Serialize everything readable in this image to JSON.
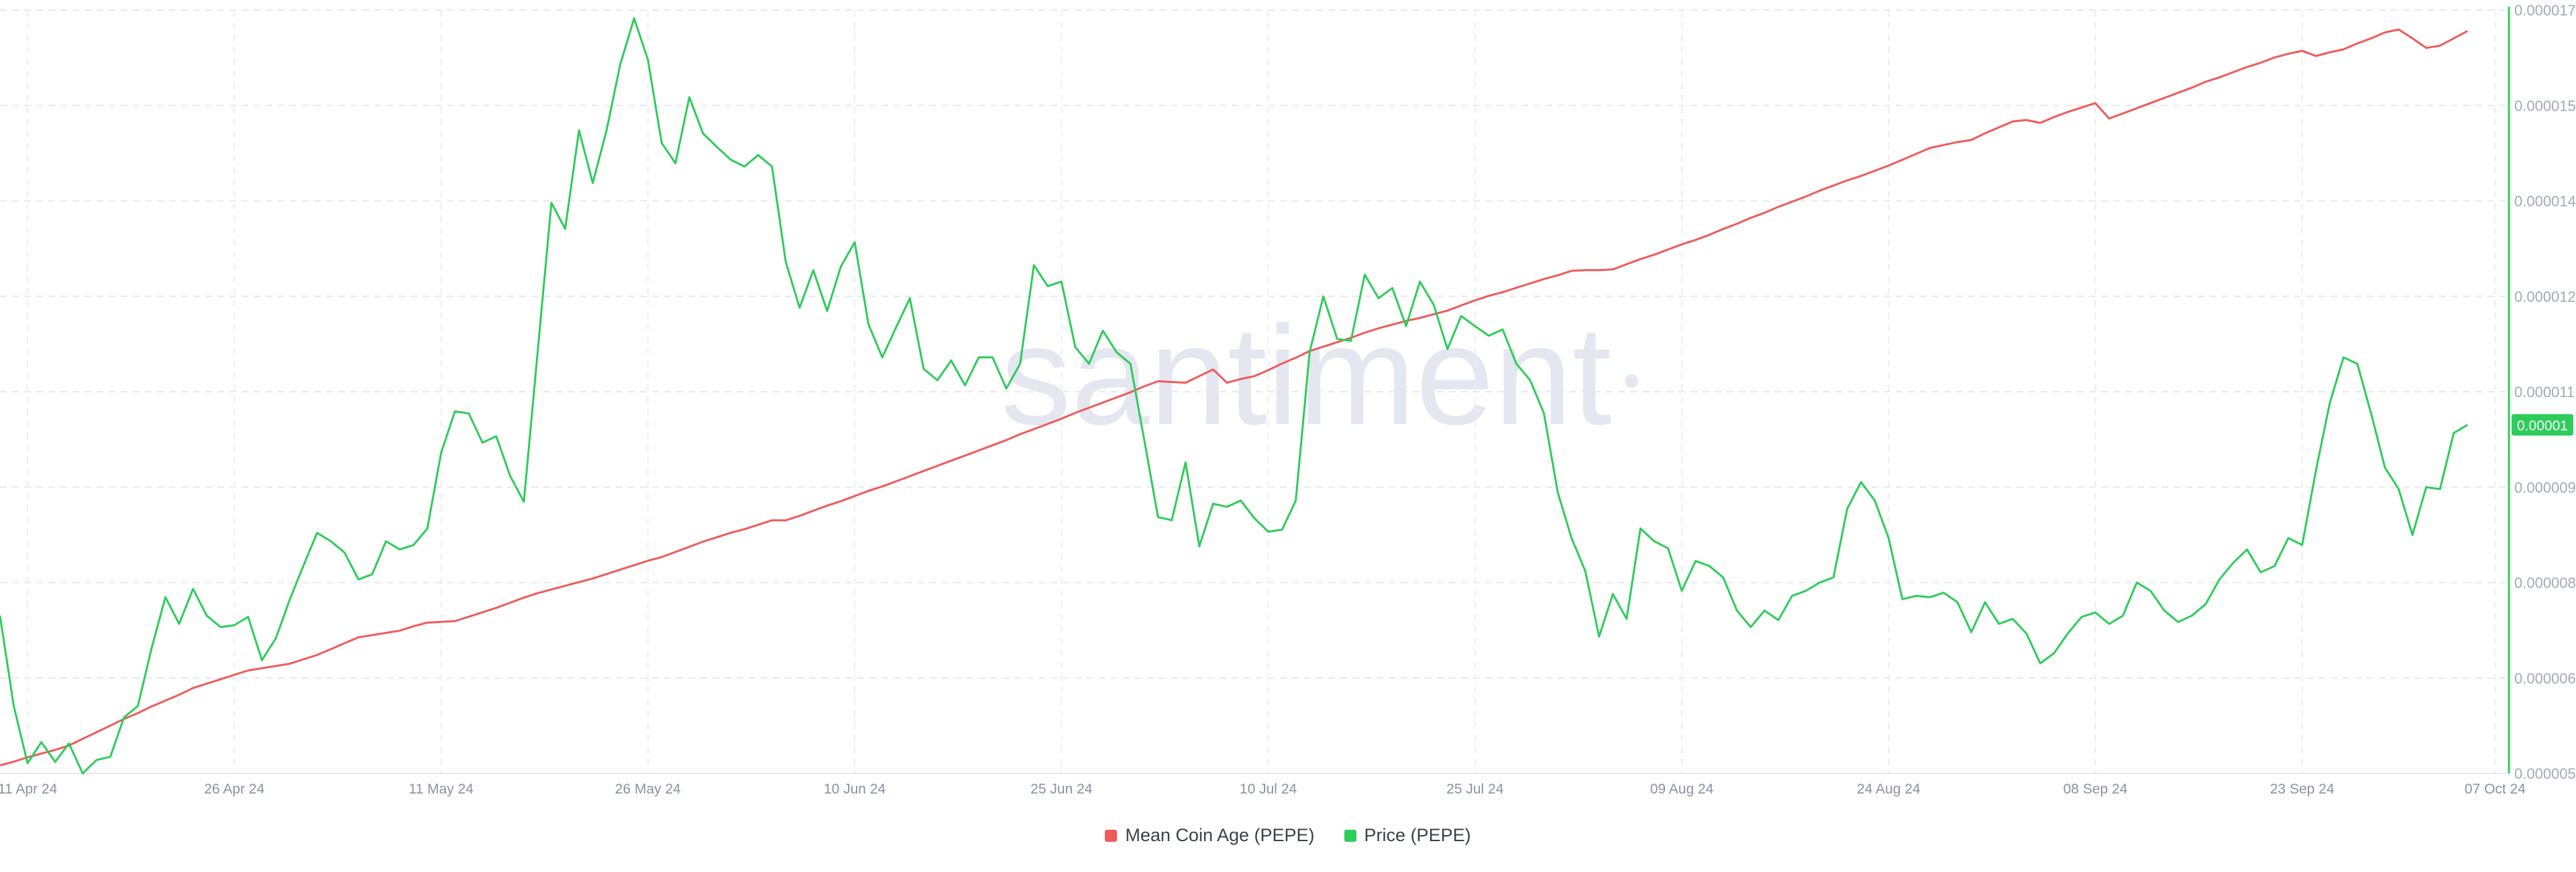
{
  "chart_data": {
    "type": "line",
    "watermark": "santiment",
    "x": [
      "2024-04-09",
      "2024-04-10",
      "2024-04-11",
      "2024-04-12",
      "2024-04-13",
      "2024-04-14",
      "2024-04-15",
      "2024-04-16",
      "2024-04-17",
      "2024-04-18",
      "2024-04-19",
      "2024-04-20",
      "2024-04-21",
      "2024-04-22",
      "2024-04-23",
      "2024-04-24",
      "2024-04-25",
      "2024-04-26",
      "2024-04-27",
      "2024-04-28",
      "2024-04-29",
      "2024-04-30",
      "2024-05-01",
      "2024-05-02",
      "2024-05-03",
      "2024-05-04",
      "2024-05-05",
      "2024-05-06",
      "2024-05-07",
      "2024-05-08",
      "2024-05-09",
      "2024-05-10",
      "2024-05-11",
      "2024-05-12",
      "2024-05-13",
      "2024-05-14",
      "2024-05-15",
      "2024-05-16",
      "2024-05-17",
      "2024-05-18",
      "2024-05-19",
      "2024-05-20",
      "2024-05-21",
      "2024-05-22",
      "2024-05-23",
      "2024-05-24",
      "2024-05-25",
      "2024-05-26",
      "2024-05-27",
      "2024-05-28",
      "2024-05-29",
      "2024-05-30",
      "2024-05-31",
      "2024-06-01",
      "2024-06-02",
      "2024-06-03",
      "2024-06-04",
      "2024-06-05",
      "2024-06-06",
      "2024-06-07",
      "2024-06-08",
      "2024-06-09",
      "2024-06-10",
      "2024-06-11",
      "2024-06-12",
      "2024-06-13",
      "2024-06-14",
      "2024-06-15",
      "2024-06-16",
      "2024-06-17",
      "2024-06-18",
      "2024-06-19",
      "2024-06-20",
      "2024-06-21",
      "2024-06-22",
      "2024-06-23",
      "2024-06-24",
      "2024-06-25",
      "2024-06-26",
      "2024-06-27",
      "2024-06-28",
      "2024-06-29",
      "2024-06-30",
      "2024-07-01",
      "2024-07-02",
      "2024-07-03",
      "2024-07-04",
      "2024-07-05",
      "2024-07-06",
      "2024-07-07",
      "2024-07-08",
      "2024-07-09",
      "2024-07-10",
      "2024-07-11",
      "2024-07-12",
      "2024-07-13",
      "2024-07-14",
      "2024-07-15",
      "2024-07-16",
      "2024-07-17",
      "2024-07-18",
      "2024-07-19",
      "2024-07-20",
      "2024-07-21",
      "2024-07-22",
      "2024-07-23",
      "2024-07-24",
      "2024-07-25",
      "2024-07-26",
      "2024-07-27",
      "2024-07-28",
      "2024-07-29",
      "2024-07-30",
      "2024-07-31",
      "2024-08-01",
      "2024-08-02",
      "2024-08-03",
      "2024-08-04",
      "2024-08-05",
      "2024-08-06",
      "2024-08-07",
      "2024-08-08",
      "2024-08-09",
      "2024-08-10",
      "2024-08-11",
      "2024-08-12",
      "2024-08-13",
      "2024-08-14",
      "2024-08-15",
      "2024-08-16",
      "2024-08-17",
      "2024-08-18",
      "2024-08-19",
      "2024-08-20",
      "2024-08-21",
      "2024-08-22",
      "2024-08-23",
      "2024-08-24",
      "2024-08-25",
      "2024-08-26",
      "2024-08-27",
      "2024-08-28",
      "2024-08-29",
      "2024-08-30",
      "2024-08-31",
      "2024-09-01",
      "2024-09-02",
      "2024-09-03",
      "2024-09-04",
      "2024-09-05",
      "2024-09-06",
      "2024-09-07",
      "2024-09-08",
      "2024-09-09",
      "2024-09-10",
      "2024-09-11",
      "2024-09-12",
      "2024-09-13",
      "2024-09-14",
      "2024-09-15",
      "2024-09-16",
      "2024-09-17",
      "2024-09-18",
      "2024-09-19",
      "2024-09-20",
      "2024-09-21",
      "2024-09-22",
      "2024-09-23",
      "2024-09-24",
      "2024-09-25",
      "2024-09-26",
      "2024-09-27",
      "2024-09-28",
      "2024-09-29",
      "2024-09-30",
      "2024-10-01",
      "2024-10-02",
      "2024-10-03",
      "2024-10-04",
      "2024-10-05"
    ],
    "xlim": [
      "2024-04-09",
      "2024-10-08"
    ],
    "xticks": [
      {
        "value": "2024-04-11",
        "label": "11 Apr 24"
      },
      {
        "value": "2024-04-26",
        "label": "26 Apr 24"
      },
      {
        "value": "2024-05-11",
        "label": "11 May 24"
      },
      {
        "value": "2024-05-26",
        "label": "26 May 24"
      },
      {
        "value": "2024-06-10",
        "label": "10 Jun 24"
      },
      {
        "value": "2024-06-25",
        "label": "25 Jun 24"
      },
      {
        "value": "2024-07-10",
        "label": "10 Jul 24"
      },
      {
        "value": "2024-07-25",
        "label": "25 Jul 24"
      },
      {
        "value": "2024-08-09",
        "label": "09 Aug 24"
      },
      {
        "value": "2024-08-24",
        "label": "24 Aug 24"
      },
      {
        "value": "2024-09-08",
        "label": "08 Sep 24"
      },
      {
        "value": "2024-09-23",
        "label": "23 Sep 24"
      },
      {
        "value": "2024-10-07",
        "label": "07 Oct 24"
      }
    ],
    "ylim": [
      5e-06,
      1.7e-05
    ],
    "yticks": [
      {
        "value": 5e-06,
        "label": "0.000005"
      },
      {
        "value": 6.5e-06,
        "label": "0.000006"
      },
      {
        "value": 8e-06,
        "label": "0.000008"
      },
      {
        "value": 9.5e-06,
        "label": "0.000009"
      },
      {
        "value": 1.1e-05,
        "label": "0.000011"
      },
      {
        "value": 1.25e-05,
        "label": "0.000012"
      },
      {
        "value": 1.4e-05,
        "label": "0.000014"
      },
      {
        "value": 1.55e-05,
        "label": "0.000015"
      },
      {
        "value": 1.7e-05,
        "label": "0.000017"
      }
    ],
    "grid": true,
    "series": [
      {
        "name": "Mean Coin Age (PEPE)",
        "color": "#f05a5a",
        "axis": "y2",
        "values": [
          0.0,
          0.5,
          1.1,
          1.6,
          2.1,
          2.7,
          3.6,
          4.5,
          5.4,
          6.3,
          7.1,
          8.0,
          8.8,
          9.6,
          10.5,
          11.1,
          11.7,
          12.3,
          12.9,
          13.2,
          13.5,
          13.8,
          14.4,
          15.0,
          15.8,
          16.6,
          17.4,
          17.7,
          18.0,
          18.3,
          18.9,
          19.4,
          19.5,
          19.6,
          20.2,
          20.8,
          21.4,
          22.1,
          22.8,
          23.4,
          23.9,
          24.4,
          24.9,
          25.4,
          26.0,
          26.6,
          27.2,
          27.8,
          28.3,
          29.0,
          29.7,
          30.4,
          31.0,
          31.6,
          32.1,
          32.7,
          33.3,
          33.3,
          33.9,
          34.6,
          35.3,
          35.9,
          36.6,
          37.3,
          37.9,
          38.6,
          39.3,
          40.0,
          40.7,
          41.4,
          42.1,
          42.8,
          43.5,
          44.2,
          45.0,
          45.7,
          46.4,
          47.1,
          47.9,
          48.6,
          49.3,
          50.0,
          50.7,
          51.5,
          52.2,
          52.1,
          52.0,
          52.9,
          53.8,
          52.0,
          52.5,
          52.9,
          53.7,
          54.6,
          55.4,
          56.3,
          56.9,
          57.5,
          58.1,
          58.8,
          59.4,
          59.9,
          60.4,
          60.8,
          61.3,
          61.8,
          62.5,
          63.2,
          63.8,
          64.3,
          64.9,
          65.5,
          66.1,
          66.6,
          67.2,
          67.3,
          67.3,
          67.4,
          68.1,
          68.8,
          69.4,
          70.1,
          70.8,
          71.4,
          72.1,
          72.9,
          73.6,
          74.4,
          75.1,
          75.9,
          76.6,
          77.3,
          78.1,
          78.8,
          79.5,
          80.1,
          80.8,
          81.5,
          82.3,
          83.1,
          83.9,
          84.3,
          84.7,
          85.0,
          85.9,
          86.7,
          87.5,
          87.7,
          87.3,
          88.1,
          88.8,
          89.4,
          90.0,
          87.9,
          88.6,
          89.3,
          90.0,
          90.7,
          91.4,
          92.1,
          92.9,
          93.5,
          94.2,
          94.9,
          95.5,
          96.2,
          96.7,
          97.1,
          96.4,
          96.9,
          97.3,
          98.1,
          98.8,
          99.6,
          100.0,
          98.8,
          97.5,
          97.8,
          98.8,
          99.8
        ]
      },
      {
        "name": "Price (PEPE)",
        "color": "#2ecc5b",
        "last_value_label": "0.00001",
        "values": [
          7.48e-06,
          6.06e-06,
          5.16e-06,
          5.49e-06,
          5.18e-06,
          5.47e-06,
          5e-06,
          5.21e-06,
          5.26e-06,
          5.88e-06,
          6.06e-06,
          6.97e-06,
          7.77e-06,
          7.35e-06,
          7.9e-06,
          7.48e-06,
          7.3e-06,
          7.33e-06,
          7.46e-06,
          6.78e-06,
          7.12e-06,
          7.72e-06,
          8.26e-06,
          8.78e-06,
          8.65e-06,
          8.47e-06,
          8.05e-06,
          8.13e-06,
          8.65e-06,
          8.52e-06,
          8.59e-06,
          8.85e-06,
          1.004e-05,
          1.069e-05,
          1.066e-05,
          1.02e-05,
          1.03e-05,
          9.68e-06,
          9.27e-06,
          1.162e-05,
          1.397e-05,
          1.356e-05,
          1.511e-05,
          1.428e-05,
          1.511e-05,
          1.615e-05,
          1.687e-05,
          1.622e-05,
          1.491e-05,
          1.459e-05,
          1.563e-05,
          1.506e-05,
          1.485e-05,
          1.465e-05,
          1.454e-05,
          1.472e-05,
          1.454e-05,
          1.304e-05,
          1.232e-05,
          1.291e-05,
          1.227e-05,
          1.297e-05,
          1.335e-05,
          1.206e-05,
          1.154e-05,
          1.201e-05,
          1.247e-05,
          1.136e-05,
          1.118e-05,
          1.149e-05,
          1.11e-05,
          1.154e-05,
          1.154e-05,
          1.105e-05,
          1.144e-05,
          1.299e-05,
          1.266e-05,
          1.273e-05,
          1.17e-05,
          1.144e-05,
          1.196e-05,
          1.162e-05,
          1.144e-05,
          1.025e-05,
          9.03e-06,
          8.98e-06,
          9.89e-06,
          8.57e-06,
          9.24e-06,
          9.19e-06,
          9.29e-06,
          9.01e-06,
          8.8e-06,
          8.83e-06,
          9.29e-06,
          1.162e-05,
          1.25e-05,
          1.183e-05,
          1.18e-05,
          1.284e-05,
          1.247e-05,
          1.263e-05,
          1.203e-05,
          1.273e-05,
          1.237e-05,
          1.167e-05,
          1.219e-05,
          1.203e-05,
          1.188e-05,
          1.198e-05,
          1.144e-05,
          1.118e-05,
          1.066e-05,
          9.42e-06,
          8.7e-06,
          8.18e-06,
          7.15e-06,
          7.82e-06,
          7.43e-06,
          8.85e-06,
          8.65e-06,
          8.54e-06,
          7.87e-06,
          8.34e-06,
          8.26e-06,
          8.08e-06,
          7.56e-06,
          7.3e-06,
          7.56e-06,
          7.41e-06,
          7.79e-06,
          7.87e-06,
          8e-06,
          8.08e-06,
          9.16e-06,
          9.58e-06,
          9.29e-06,
          8.7e-06,
          7.74e-06,
          7.79e-06,
          7.77e-06,
          7.84e-06,
          7.69e-06,
          7.22e-06,
          7.69e-06,
          7.35e-06,
          7.43e-06,
          7.2e-06,
          6.73e-06,
          6.89e-06,
          7.2e-06,
          7.46e-06,
          7.53e-06,
          7.35e-06,
          7.48e-06,
          8e-06,
          7.87e-06,
          7.56e-06,
          7.38e-06,
          7.48e-06,
          7.66e-06,
          8.05e-06,
          8.31e-06,
          8.52e-06,
          8.16e-06,
          8.26e-06,
          8.7e-06,
          8.59e-06,
          9.76e-06,
          1.082e-05,
          1.154e-05,
          1.144e-05,
          1.066e-05,
          9.81e-06,
          9.47e-06,
          8.75e-06,
          9.5e-06,
          9.47e-06,
          1.035e-05,
          1.048e-05
        ]
      }
    ]
  }
}
